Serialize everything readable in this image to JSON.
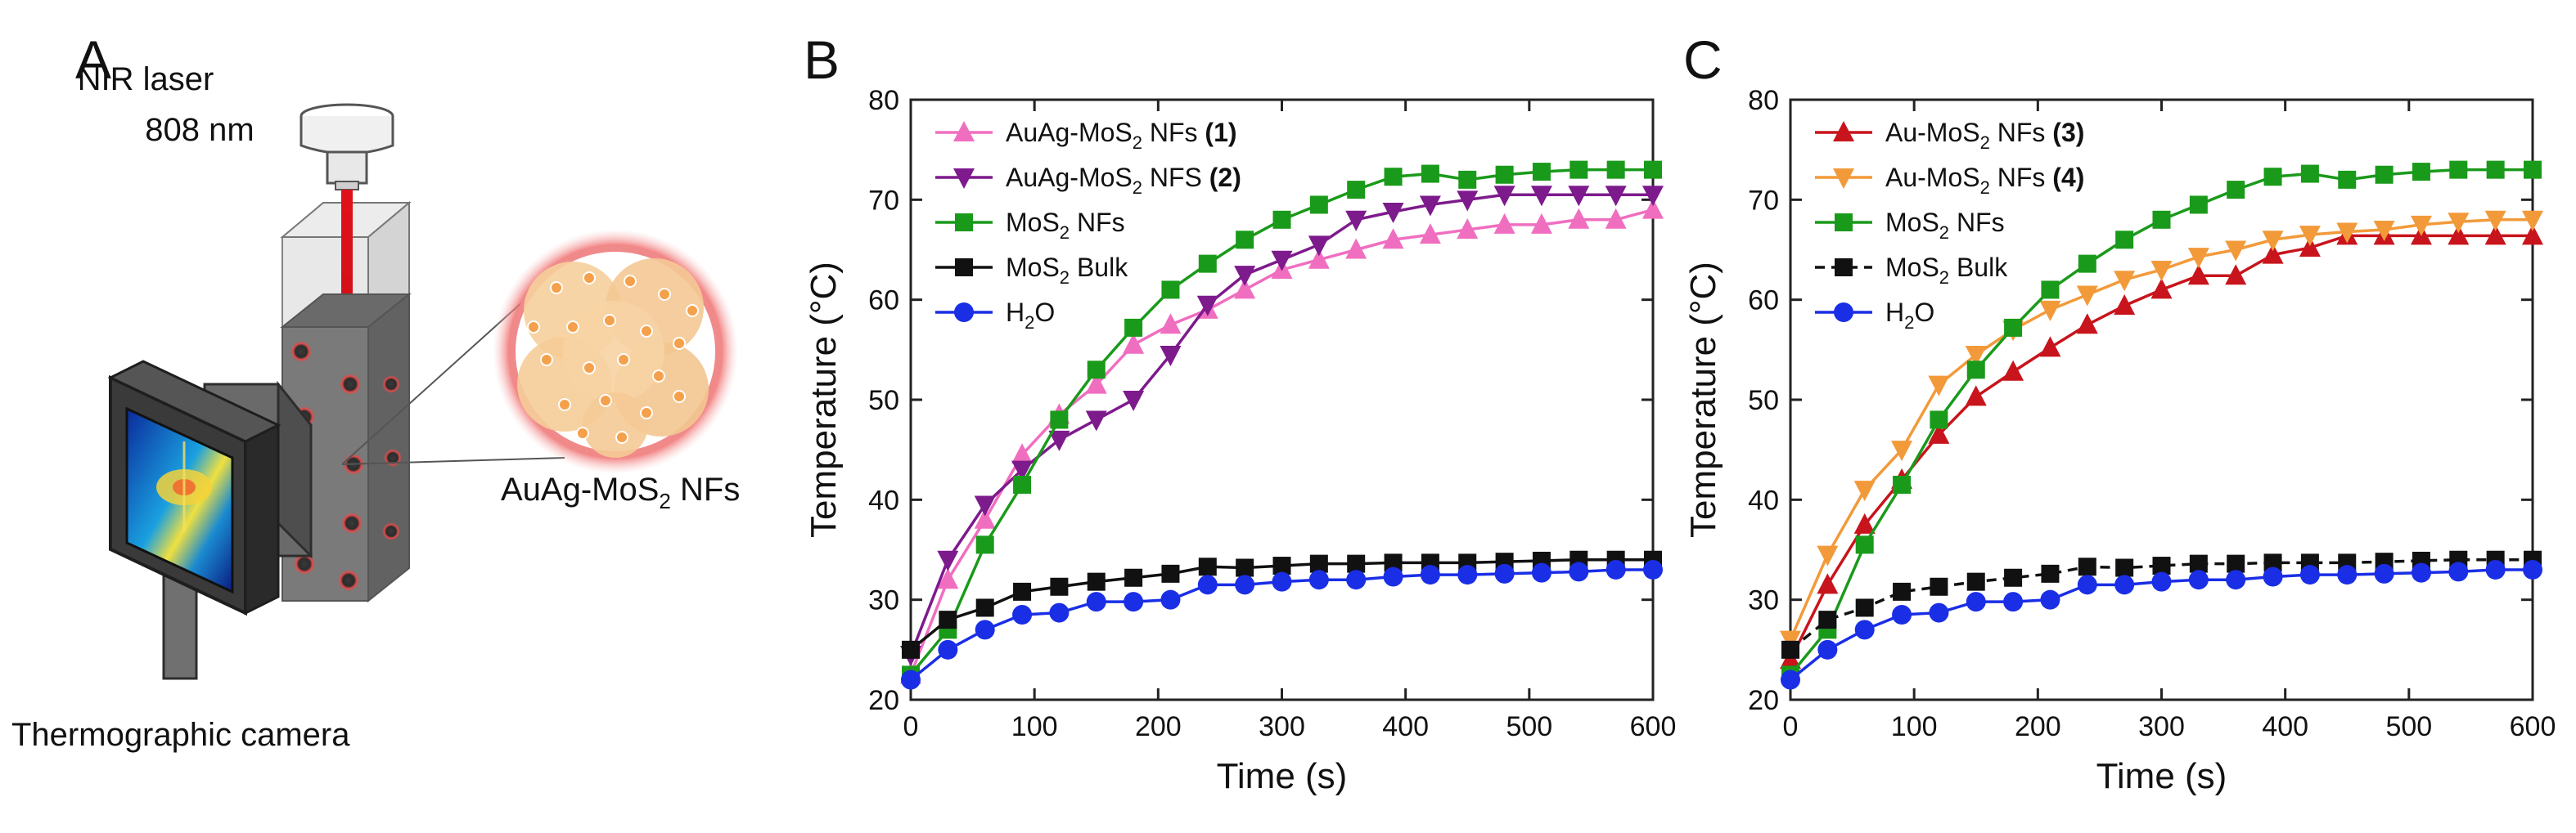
{
  "panels": {
    "a": "A",
    "b": "B",
    "c": "C"
  },
  "illustration": {
    "laser_line1": "NIR laser",
    "laser_line2": "808 nm",
    "nf_label_main": "AuAg-MoS",
    "nf_label_sub": "2",
    "nf_label_end": " NFs",
    "camera_label": "Thermographic camera"
  },
  "colors": {
    "pink": "#f06ec0",
    "purple": "#7d1a8c",
    "green": "#1a9a1a",
    "black": "#111111",
    "blue": "#1a2ee6",
    "red": "#c8141c",
    "orange": "#f29a3a"
  },
  "chart_data": [
    {
      "type": "line",
      "title": "",
      "xlabel": "Time (s)",
      "ylabel": "Temperature (°C)",
      "xlim": [
        0,
        600
      ],
      "ylim": [
        20,
        80
      ],
      "xticks": [
        "0",
        "100",
        "200",
        "300",
        "400",
        "500",
        "600"
      ],
      "yticks": [
        "20",
        "30",
        "40",
        "50",
        "60",
        "70",
        "80"
      ],
      "legend_position": "top-left",
      "x": [
        0,
        30,
        60,
        90,
        120,
        150,
        180,
        210,
        240,
        270,
        300,
        330,
        360,
        390,
        420,
        450,
        480,
        510,
        540,
        570,
        600
      ],
      "series": [
        {
          "name": "AuAg-MoS2 NFs (1)",
          "legend": [
            "AuAg-MoS",
            "2",
            " NFs ",
            "(1)"
          ],
          "color_key": "pink",
          "marker": "triangle-up",
          "dashed": false,
          "values": [
            22.5,
            32,
            38,
            44.5,
            48.5,
            51.5,
            55.5,
            57.5,
            59,
            61,
            63,
            64,
            65,
            66,
            66.5,
            67,
            67.5,
            67.5,
            68,
            68,
            69
          ]
        },
        {
          "name": "AuAg-MoS2 NFS (2)",
          "legend": [
            "AuAg-MoS",
            "2",
            " NFS ",
            "(2)"
          ],
          "color_key": "purple",
          "marker": "triangle-down",
          "dashed": false,
          "values": [
            24.5,
            34,
            39.5,
            43,
            46,
            48,
            50,
            54.5,
            59.5,
            62.5,
            64,
            65.5,
            68,
            68.8,
            69.5,
            70,
            70.5,
            70.5,
            70.5,
            70.5,
            70.5
          ]
        },
        {
          "name": "MoS2 NFs",
          "legend": [
            "MoS",
            "2",
            " NFs",
            ""
          ],
          "color_key": "green",
          "marker": "square",
          "dashed": false,
          "values": [
            22.5,
            27,
            35.5,
            41.5,
            48,
            53,
            57.2,
            61,
            63.6,
            66,
            68,
            69.5,
            71,
            72.3,
            72.6,
            72,
            72.5,
            72.8,
            73,
            73,
            73
          ]
        },
        {
          "name": "MoS2 Bulk",
          "legend": [
            "MoS",
            "2",
            " Bulk",
            ""
          ],
          "color_key": "black",
          "marker": "square",
          "dashed": false,
          "values": [
            25,
            28,
            29.2,
            30.8,
            31.3,
            31.8,
            32.2,
            32.6,
            33.3,
            33.2,
            33.4,
            33.6,
            33.6,
            33.7,
            33.7,
            33.7,
            33.8,
            33.9,
            34,
            34,
            34
          ]
        },
        {
          "name": "H2O",
          "legend": [
            "H",
            "2",
            "O",
            ""
          ],
          "color_key": "blue",
          "marker": "circle",
          "dashed": false,
          "values": [
            22,
            25,
            27,
            28.5,
            28.7,
            29.8,
            29.8,
            30,
            31.5,
            31.5,
            31.8,
            32,
            32,
            32.3,
            32.5,
            32.5,
            32.6,
            32.7,
            32.8,
            33,
            33
          ]
        }
      ]
    },
    {
      "type": "line",
      "title": "",
      "xlabel": "Time (s)",
      "ylabel": "Temperature (°C)",
      "xlim": [
        0,
        600
      ],
      "ylim": [
        20,
        80
      ],
      "xticks": [
        "0",
        "100",
        "200",
        "300",
        "400",
        "500",
        "600"
      ],
      "yticks": [
        "20",
        "30",
        "40",
        "50",
        "60",
        "70",
        "80"
      ],
      "legend_position": "top-left",
      "x": [
        0,
        30,
        60,
        90,
        120,
        150,
        180,
        210,
        240,
        270,
        300,
        330,
        360,
        390,
        420,
        450,
        480,
        510,
        540,
        570,
        600
      ],
      "series": [
        {
          "name": "Au-MoS2 NFs (3)",
          "legend": [
            "Au-MoS",
            "2",
            " NFs ",
            "(3)"
          ],
          "color_key": "red",
          "marker": "triangle-up",
          "dashed": false,
          "values": [
            24,
            31.5,
            37.5,
            42,
            46.5,
            50.3,
            52.8,
            55.2,
            57.5,
            59.4,
            61,
            62.4,
            62.4,
            64.5,
            65.2,
            66.4,
            66.4,
            66.4,
            66.4,
            66.4,
            66.4
          ]
        },
        {
          "name": "Au-MoS2 NFs (4)",
          "legend": [
            "Au-MoS",
            "2",
            " NFs ",
            "(4)"
          ],
          "color_key": "orange",
          "marker": "triangle-down",
          "dashed": false,
          "values": [
            26,
            34.5,
            41,
            45,
            51.5,
            54.5,
            57,
            59,
            60.5,
            62,
            63,
            64.3,
            65,
            66,
            66.5,
            66.8,
            67,
            67.5,
            67.8,
            68,
            68
          ]
        },
        {
          "name": "MoS2 NFs",
          "legend": [
            "MoS",
            "2",
            " NFs",
            ""
          ],
          "color_key": "green",
          "marker": "square",
          "dashed": false,
          "values": [
            22.5,
            27,
            35.5,
            41.5,
            48,
            53,
            57.2,
            61,
            63.6,
            66,
            68,
            69.5,
            71,
            72.3,
            72.6,
            72,
            72.5,
            72.8,
            73,
            73,
            73
          ]
        },
        {
          "name": "MoS2 Bulk",
          "legend": [
            "MoS",
            "2",
            " Bulk",
            ""
          ],
          "color_key": "black",
          "marker": "square",
          "dashed": true,
          "values": [
            25,
            28,
            29.2,
            30.8,
            31.3,
            31.8,
            32.2,
            32.6,
            33.3,
            33.2,
            33.4,
            33.6,
            33.6,
            33.7,
            33.7,
            33.7,
            33.8,
            33.9,
            34,
            34,
            34
          ]
        },
        {
          "name": "H2O",
          "legend": [
            "H",
            "2",
            "O",
            ""
          ],
          "color_key": "blue",
          "marker": "circle",
          "dashed": false,
          "values": [
            22,
            25,
            27,
            28.5,
            28.7,
            29.8,
            29.8,
            30,
            31.5,
            31.5,
            31.8,
            32,
            32,
            32.3,
            32.5,
            32.5,
            32.6,
            32.7,
            32.8,
            33,
            33
          ]
        }
      ]
    }
  ]
}
